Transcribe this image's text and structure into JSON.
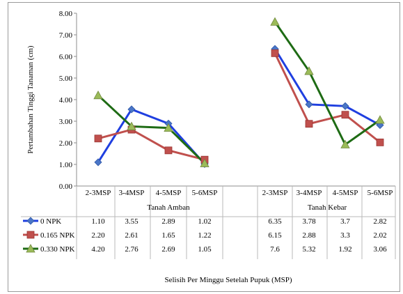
{
  "chart_data": {
    "type": "line",
    "groups": [
      "Tanah Amban",
      "Tanah Kebar"
    ],
    "categories": [
      "2-3MSP",
      "3-4MSP",
      "4-5MSP",
      "5-6MSP"
    ],
    "ylabel": "Pertambahan Tinggi Tanaman (cm)",
    "xlabel": "Selisih Per Minggu Setelah Pupuk (MSP)",
    "ylim": [
      0,
      8
    ],
    "yticks": [
      "0.00",
      "1.00",
      "2.00",
      "3.00",
      "4.00",
      "5.00",
      "6.00",
      "7.00",
      "8.00"
    ],
    "grid": false,
    "legend_placement": "table-left",
    "series": [
      {
        "name": "0 NPK",
        "color": "#1f3fe0",
        "marker": "diamond",
        "values": [
          [
            1.1,
            3.55,
            2.89,
            1.02
          ],
          [
            6.35,
            3.78,
            3.7,
            2.82
          ]
        ],
        "labels": [
          [
            "1.10",
            "3.55",
            "2.89",
            "1.02"
          ],
          [
            "6.35",
            "3.78",
            "3.7",
            "2.82"
          ]
        ]
      },
      {
        "name": "0.165 NPK",
        "color": "#c0504d",
        "marker": "square",
        "values": [
          [
            2.2,
            2.61,
            1.65,
            1.22
          ],
          [
            6.15,
            2.88,
            3.3,
            2.02
          ]
        ],
        "labels": [
          [
            "2.20",
            "2.61",
            "1.65",
            "1.22"
          ],
          [
            "6.15",
            "2.88",
            "3.3",
            "2.02"
          ]
        ]
      },
      {
        "name": "0.330 NPK",
        "color": "#1e6b14",
        "marker": "triangle",
        "values": [
          [
            4.2,
            2.76,
            2.69,
            1.05
          ],
          [
            7.6,
            5.32,
            1.92,
            3.06
          ]
        ],
        "labels": [
          [
            "4.20",
            "2.76",
            "2.69",
            "1.05"
          ],
          [
            "7.6",
            "5.32",
            "1.92",
            "3.06"
          ]
        ]
      }
    ]
  }
}
